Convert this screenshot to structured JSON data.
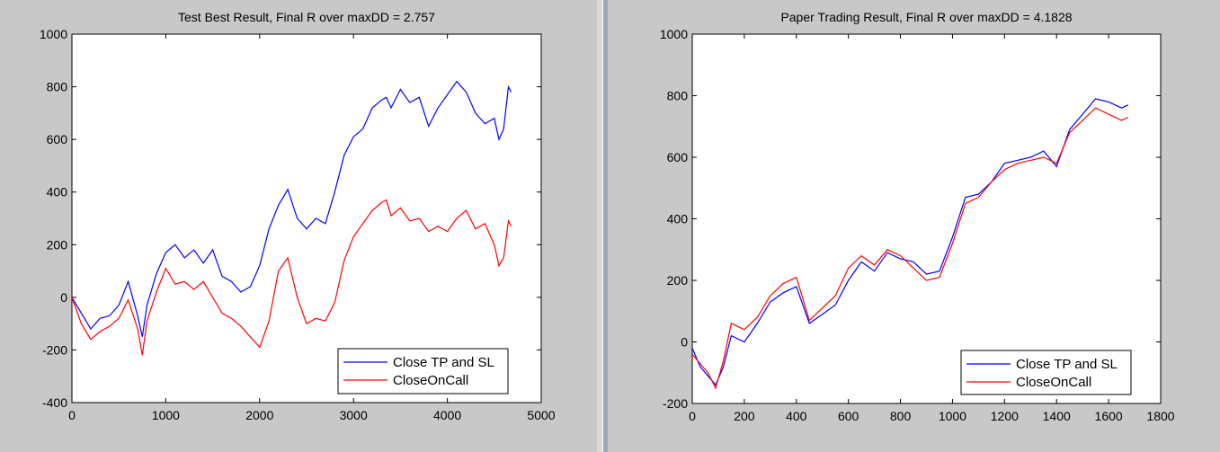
{
  "window": {
    "background": "#c8c8c8"
  },
  "colors": {
    "series_blue": "#0000ff",
    "series_red": "#ff0000",
    "axes_background": "#ffffff",
    "figure_background": "#c8c8c8"
  },
  "chart_data": [
    {
      "type": "line",
      "title": "Test Best Result, Final R over maxDD = 2.757",
      "xlabel": "",
      "ylabel": "",
      "xlim": [
        0,
        5000
      ],
      "ylim": [
        -400,
        1000
      ],
      "xticks": [
        0,
        1000,
        2000,
        3000,
        4000,
        5000
      ],
      "yticks": [
        -400,
        -200,
        0,
        200,
        400,
        600,
        800,
        1000
      ],
      "grid": false,
      "legend_position": "bottom-right",
      "series": [
        {
          "name": "Close TP and SL",
          "color": "#0000ff",
          "x": [
            0,
            100,
            200,
            300,
            400,
            500,
            600,
            700,
            750,
            800,
            900,
            1000,
            1100,
            1200,
            1300,
            1400,
            1500,
            1600,
            1700,
            1800,
            1900,
            2000,
            2100,
            2200,
            2300,
            2400,
            2500,
            2600,
            2700,
            2800,
            2900,
            3000,
            3100,
            3200,
            3300,
            3350,
            3400,
            3500,
            3600,
            3700,
            3800,
            3900,
            4000,
            4100,
            4200,
            4300,
            4400,
            4500,
            4550,
            4600,
            4650,
            4680
          ],
          "y": [
            0,
            -60,
            -120,
            -80,
            -70,
            -30,
            60,
            -70,
            -150,
            -30,
            90,
            170,
            200,
            150,
            180,
            130,
            180,
            80,
            60,
            20,
            40,
            120,
            260,
            350,
            410,
            300,
            260,
            300,
            280,
            400,
            540,
            610,
            640,
            720,
            750,
            760,
            720,
            790,
            740,
            760,
            650,
            720,
            770,
            820,
            780,
            700,
            660,
            680,
            600,
            640,
            800,
            780
          ]
        },
        {
          "name": "CloseOnCall",
          "color": "#ff0000",
          "x": [
            0,
            100,
            200,
            300,
            400,
            500,
            600,
            700,
            750,
            800,
            900,
            1000,
            1100,
            1200,
            1300,
            1400,
            1500,
            1600,
            1700,
            1800,
            1900,
            2000,
            2100,
            2200,
            2300,
            2400,
            2500,
            2600,
            2700,
            2800,
            2900,
            3000,
            3100,
            3200,
            3300,
            3350,
            3400,
            3500,
            3600,
            3700,
            3800,
            3900,
            4000,
            4100,
            4200,
            4300,
            4400,
            4500,
            4550,
            4600,
            4650,
            4680
          ],
          "y": [
            0,
            -100,
            -160,
            -130,
            -110,
            -80,
            -10,
            -120,
            -220,
            -90,
            20,
            110,
            50,
            60,
            30,
            60,
            0,
            -60,
            -80,
            -110,
            -150,
            -190,
            -90,
            100,
            150,
            0,
            -100,
            -80,
            -90,
            -20,
            140,
            230,
            280,
            330,
            360,
            370,
            310,
            340,
            290,
            300,
            250,
            270,
            250,
            300,
            330,
            260,
            280,
            200,
            120,
            150,
            290,
            270
          ]
        }
      ]
    },
    {
      "type": "line",
      "title": "Paper Trading Result, Final R over maxDD = 4.1828",
      "xlabel": "",
      "ylabel": "",
      "xlim": [
        0,
        1800
      ],
      "ylim": [
        -200,
        1000
      ],
      "xticks": [
        0,
        200,
        400,
        600,
        800,
        1000,
        1200,
        1400,
        1600,
        1800
      ],
      "yticks": [
        -200,
        0,
        200,
        400,
        600,
        800,
        1000
      ],
      "grid": false,
      "legend_position": "bottom-right",
      "series": [
        {
          "name": "Close TP and SL",
          "color": "#0000ff",
          "x": [
            0,
            30,
            60,
            90,
            120,
            150,
            200,
            250,
            300,
            350,
            400,
            450,
            500,
            550,
            600,
            650,
            700,
            750,
            800,
            850,
            900,
            950,
            1000,
            1050,
            1100,
            1150,
            1200,
            1250,
            1300,
            1350,
            1400,
            1450,
            1500,
            1550,
            1600,
            1650,
            1675
          ],
          "y": [
            -20,
            -80,
            -110,
            -140,
            -80,
            20,
            0,
            60,
            130,
            160,
            180,
            60,
            90,
            120,
            200,
            260,
            230,
            290,
            270,
            260,
            220,
            230,
            340,
            470,
            480,
            520,
            580,
            590,
            600,
            620,
            570,
            690,
            740,
            790,
            780,
            760,
            770
          ]
        },
        {
          "name": "CloseOnCall",
          "color": "#ff0000",
          "x": [
            0,
            30,
            60,
            90,
            120,
            150,
            200,
            250,
            300,
            350,
            400,
            450,
            500,
            550,
            600,
            650,
            700,
            750,
            800,
            850,
            900,
            950,
            1000,
            1050,
            1100,
            1150,
            1200,
            1250,
            1300,
            1350,
            1400,
            1450,
            1500,
            1550,
            1600,
            1650,
            1675
          ],
          "y": [
            -40,
            -70,
            -100,
            -150,
            -60,
            60,
            40,
            80,
            150,
            190,
            210,
            70,
            110,
            150,
            240,
            280,
            250,
            300,
            280,
            240,
            200,
            210,
            320,
            450,
            470,
            520,
            560,
            580,
            590,
            600,
            580,
            680,
            720,
            760,
            740,
            720,
            730
          ]
        }
      ]
    }
  ]
}
